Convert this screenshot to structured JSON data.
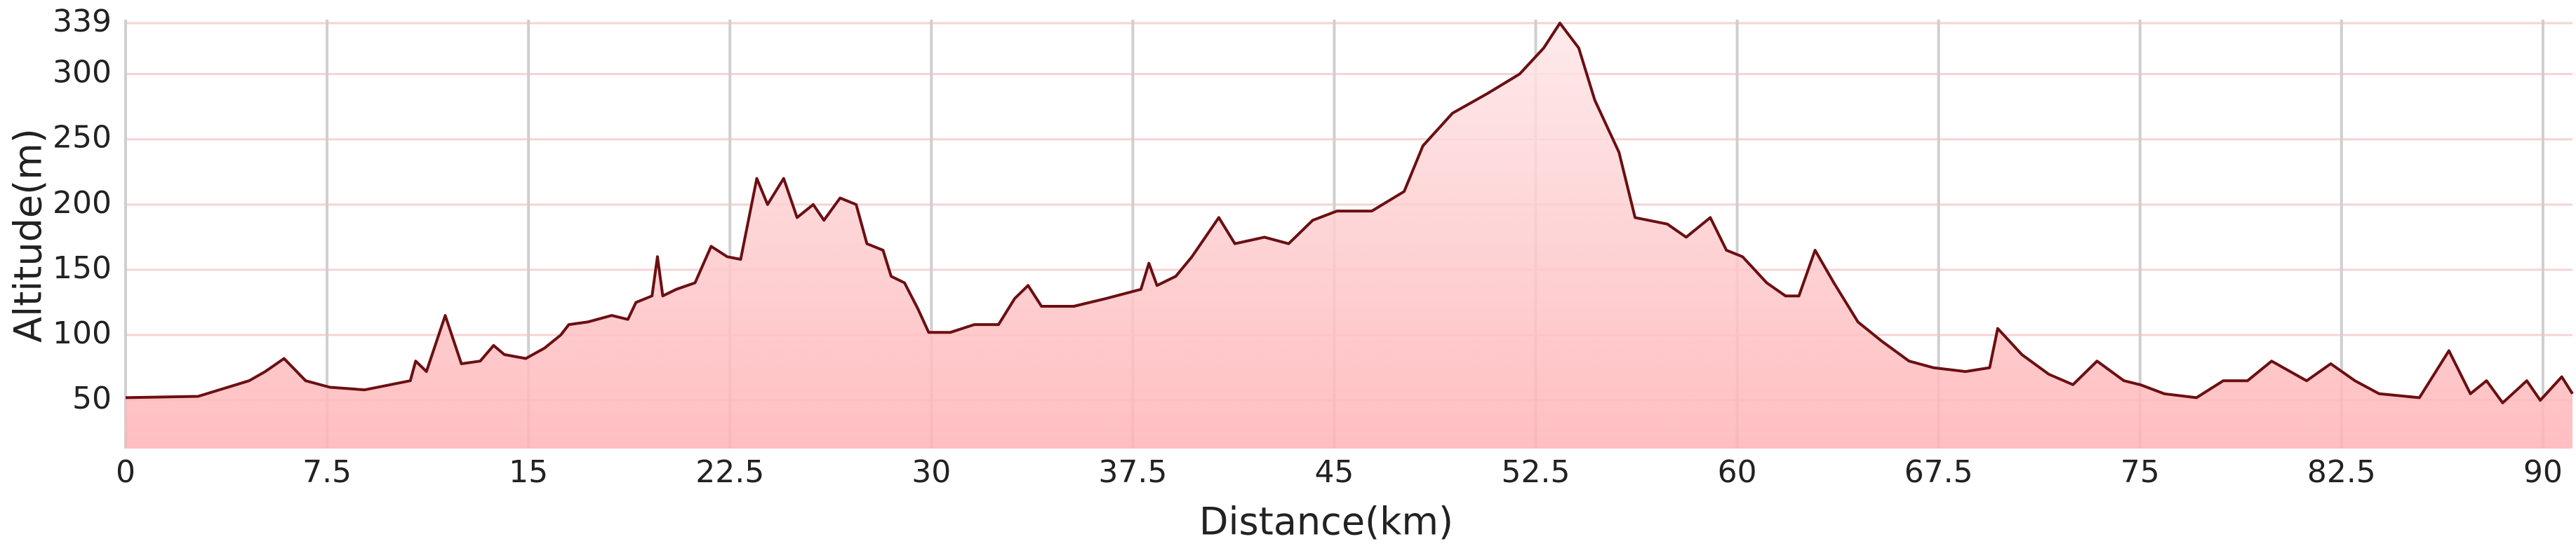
{
  "chart_data": {
    "type": "area",
    "x_label": "Distance(km)",
    "y_label": "Altitude(m)",
    "x": [
      0,
      2.7,
      4.6,
      5.2,
      5.9,
      6.7,
      7.6,
      8.9,
      10.6,
      10.8,
      11.2,
      11.9,
      12.5,
      13.2,
      13.7,
      14.1,
      14.9,
      15.6,
      16.2,
      16.5,
      17.2,
      18.1,
      18.7,
      19.0,
      19.6,
      19.8,
      20.0,
      20.5,
      21.2,
      21.8,
      22.4,
      22.9,
      23.5,
      23.9,
      24.5,
      25.0,
      25.6,
      26.0,
      26.6,
      27.2,
      27.6,
      28.2,
      28.5,
      29.0,
      29.5,
      29.9,
      30.7,
      31.6,
      32.5,
      33.1,
      33.6,
      34.1,
      35.3,
      36.5,
      37.8,
      38.1,
      38.4,
      39.1,
      39.7,
      40.7,
      41.3,
      42.4,
      43.3,
      44.2,
      45.1,
      46.4,
      47.6,
      48.3,
      49.4,
      50.7,
      51.9,
      52.8,
      53.4,
      54.1,
      54.7,
      55.6,
      56.2,
      57.4,
      58.1,
      59.0,
      59.6,
      60.2,
      61.1,
      61.8,
      62.3,
      62.9,
      63.6,
      64.5,
      65.4,
      66.4,
      67.3,
      68.5,
      69.4,
      69.7,
      70.6,
      71.6,
      72.5,
      73.4,
      74.4,
      75.0,
      75.9,
      77.1,
      78.1,
      79.0,
      79.9,
      81.2,
      82.1,
      83.0,
      83.9,
      85.4,
      86.5,
      87.3,
      87.9,
      88.5,
      89.4,
      89.9,
      90.7,
      91.1
    ],
    "series": [
      {
        "name": "Altitude",
        "color": "#6b0f12",
        "fill": "#ffb3b6",
        "values": [
          52,
          53,
          65,
          72,
          82,
          65,
          60,
          58,
          65,
          80,
          72,
          115,
          78,
          80,
          92,
          85,
          82,
          90,
          100,
          108,
          110,
          115,
          112,
          125,
          130,
          160,
          130,
          135,
          140,
          168,
          160,
          158,
          220,
          200,
          220,
          190,
          200,
          188,
          205,
          200,
          170,
          165,
          145,
          140,
          120,
          102,
          102,
          108,
          108,
          128,
          138,
          122,
          122,
          128,
          135,
          155,
          138,
          145,
          160,
          190,
          170,
          175,
          170,
          188,
          195,
          195,
          210,
          245,
          270,
          285,
          300,
          320,
          339,
          320,
          280,
          240,
          190,
          185,
          175,
          190,
          165,
          160,
          140,
          130,
          130,
          165,
          140,
          110,
          95,
          80,
          75,
          72,
          75,
          105,
          85,
          70,
          62,
          80,
          65,
          62,
          55,
          52,
          65,
          65,
          80,
          65,
          78,
          65,
          55,
          52,
          88,
          55,
          65,
          48,
          65,
          50,
          68,
          55
        ]
      }
    ],
    "xlim": [
      0,
      91.1
    ],
    "ylim": [
      13,
      339
    ],
    "xticks": [
      0,
      7.5,
      15,
      22.5,
      30,
      37.5,
      45,
      52.5,
      60,
      67.5,
      75,
      82.5,
      90
    ],
    "yticks": [
      50,
      100,
      150,
      200,
      250,
      300,
      339
    ],
    "grid": true
  }
}
